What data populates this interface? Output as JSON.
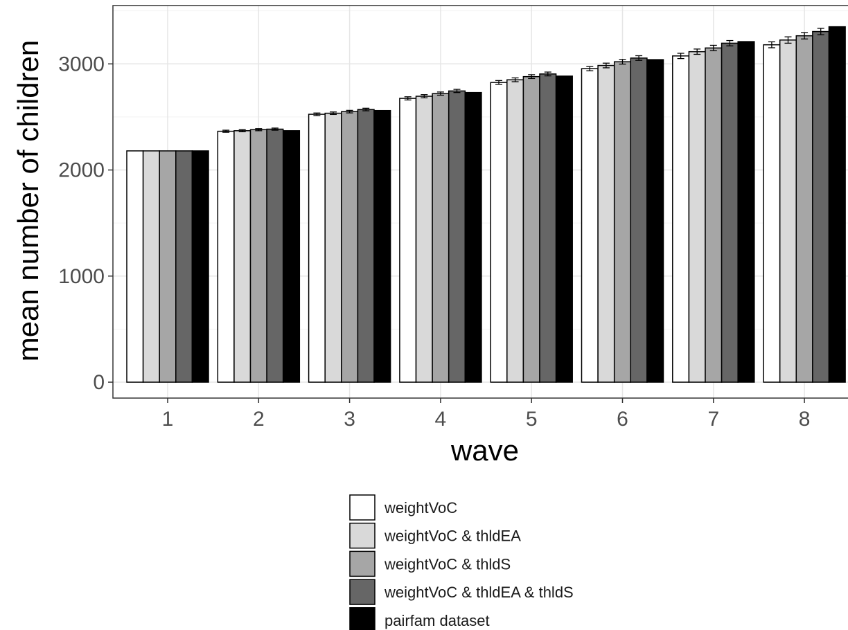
{
  "chart_data": {
    "type": "bar",
    "xlabel": "wave",
    "ylabel": "mean number of children",
    "categories": [
      "1",
      "2",
      "3",
      "4",
      "5",
      "6",
      "7",
      "8"
    ],
    "ylim": [
      -150,
      3550
    ],
    "yticks": [
      0,
      1000,
      2000,
      3000
    ],
    "grid": true,
    "legend_position": "bottom",
    "error_bars": true,
    "series": [
      {
        "name": "weightVoC",
        "color": "#ffffff",
        "values": [
          2180,
          2365,
          2525,
          2675,
          2825,
          2955,
          3075,
          3180
        ],
        "errors": [
          0,
          10,
          12,
          15,
          18,
          20,
          25,
          28
        ]
      },
      {
        "name": "weightVoC & thldEA",
        "color": "#d9d9d9",
        "values": [
          2180,
          2370,
          2535,
          2695,
          2850,
          2985,
          3115,
          3225
        ],
        "errors": [
          0,
          10,
          12,
          15,
          18,
          22,
          25,
          30
        ]
      },
      {
        "name": "weightVoC & thldS",
        "color": "#a6a6a6",
        "values": [
          2180,
          2380,
          2550,
          2720,
          2880,
          3020,
          3150,
          3265
        ],
        "errors": [
          0,
          10,
          12,
          15,
          18,
          22,
          25,
          30
        ]
      },
      {
        "name": "weightVoC & thldEA & thldS",
        "color": "#666666",
        "values": [
          2180,
          2385,
          2570,
          2745,
          2905,
          3055,
          3195,
          3305
        ],
        "errors": [
          0,
          10,
          12,
          15,
          18,
          22,
          25,
          30
        ]
      },
      {
        "name": "pairfam dataset",
        "color": "#000000",
        "values": [
          2180,
          2370,
          2560,
          2730,
          2885,
          3040,
          3210,
          3350
        ],
        "errors": [
          0,
          0,
          0,
          0,
          0,
          0,
          0,
          0
        ]
      }
    ]
  }
}
